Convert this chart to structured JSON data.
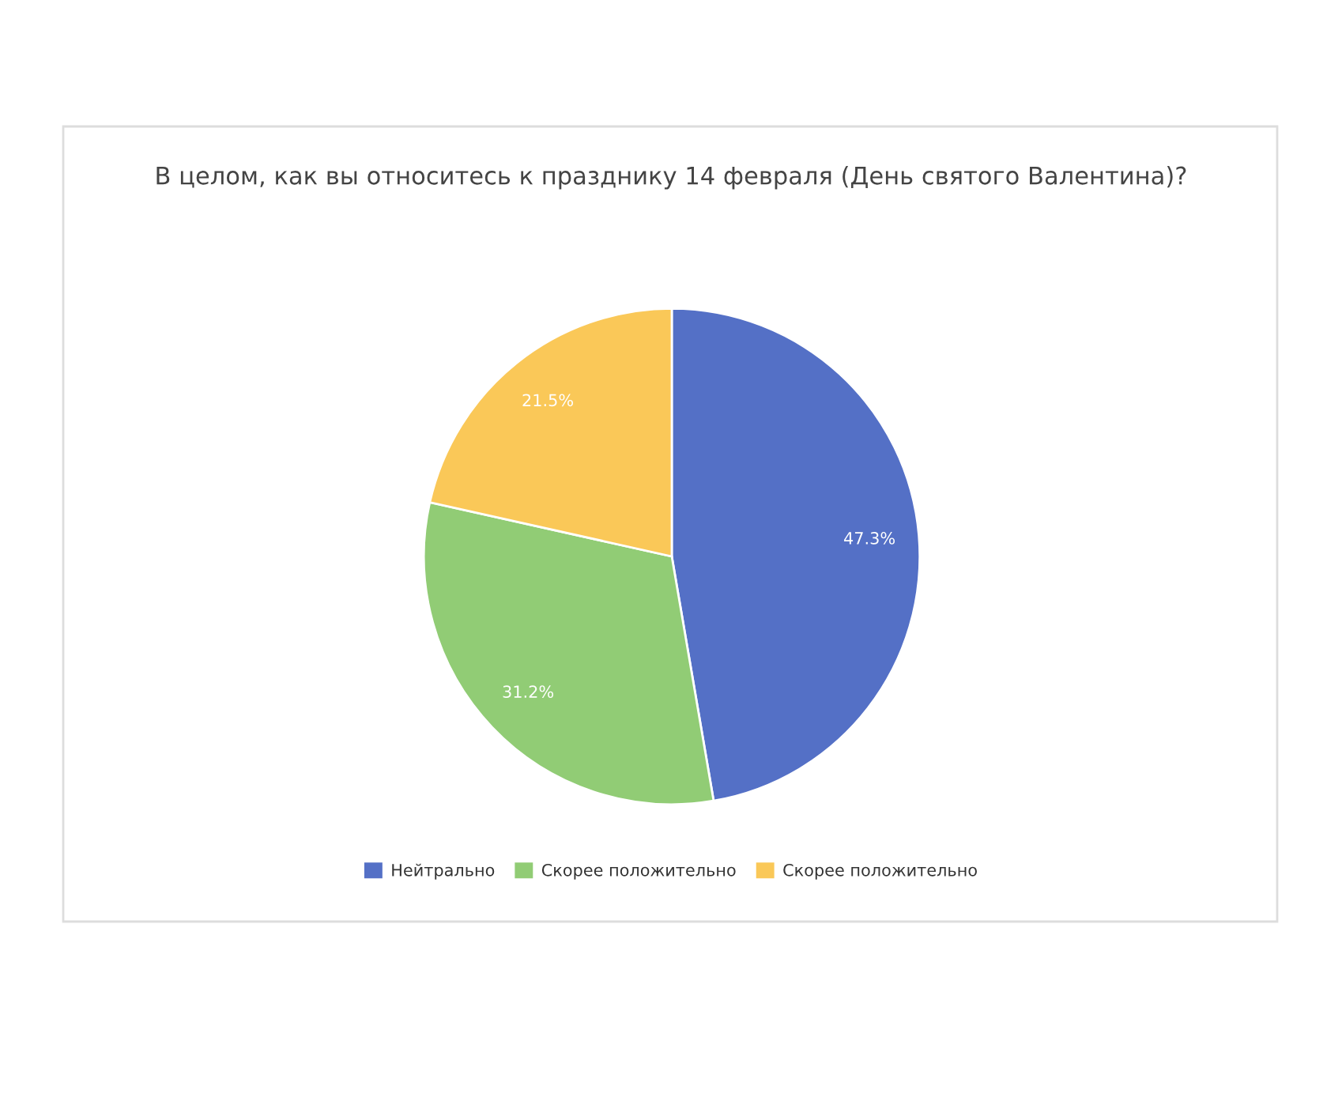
{
  "chart_data": {
    "type": "pie",
    "title": "В целом, как вы относитесь к празднику 14 февраля (День святого Валентина)?",
    "categories": [
      "Нейтрально",
      "Скорее положительно",
      "Скорее положительно"
    ],
    "values": [
      47.3,
      31.2,
      21.5
    ],
    "colors": [
      "#5470c6",
      "#91cc75",
      "#fac858"
    ],
    "value_labels": [
      "47.3%",
      "31.2%",
      "21.5%"
    ],
    "legend": "bottom"
  }
}
